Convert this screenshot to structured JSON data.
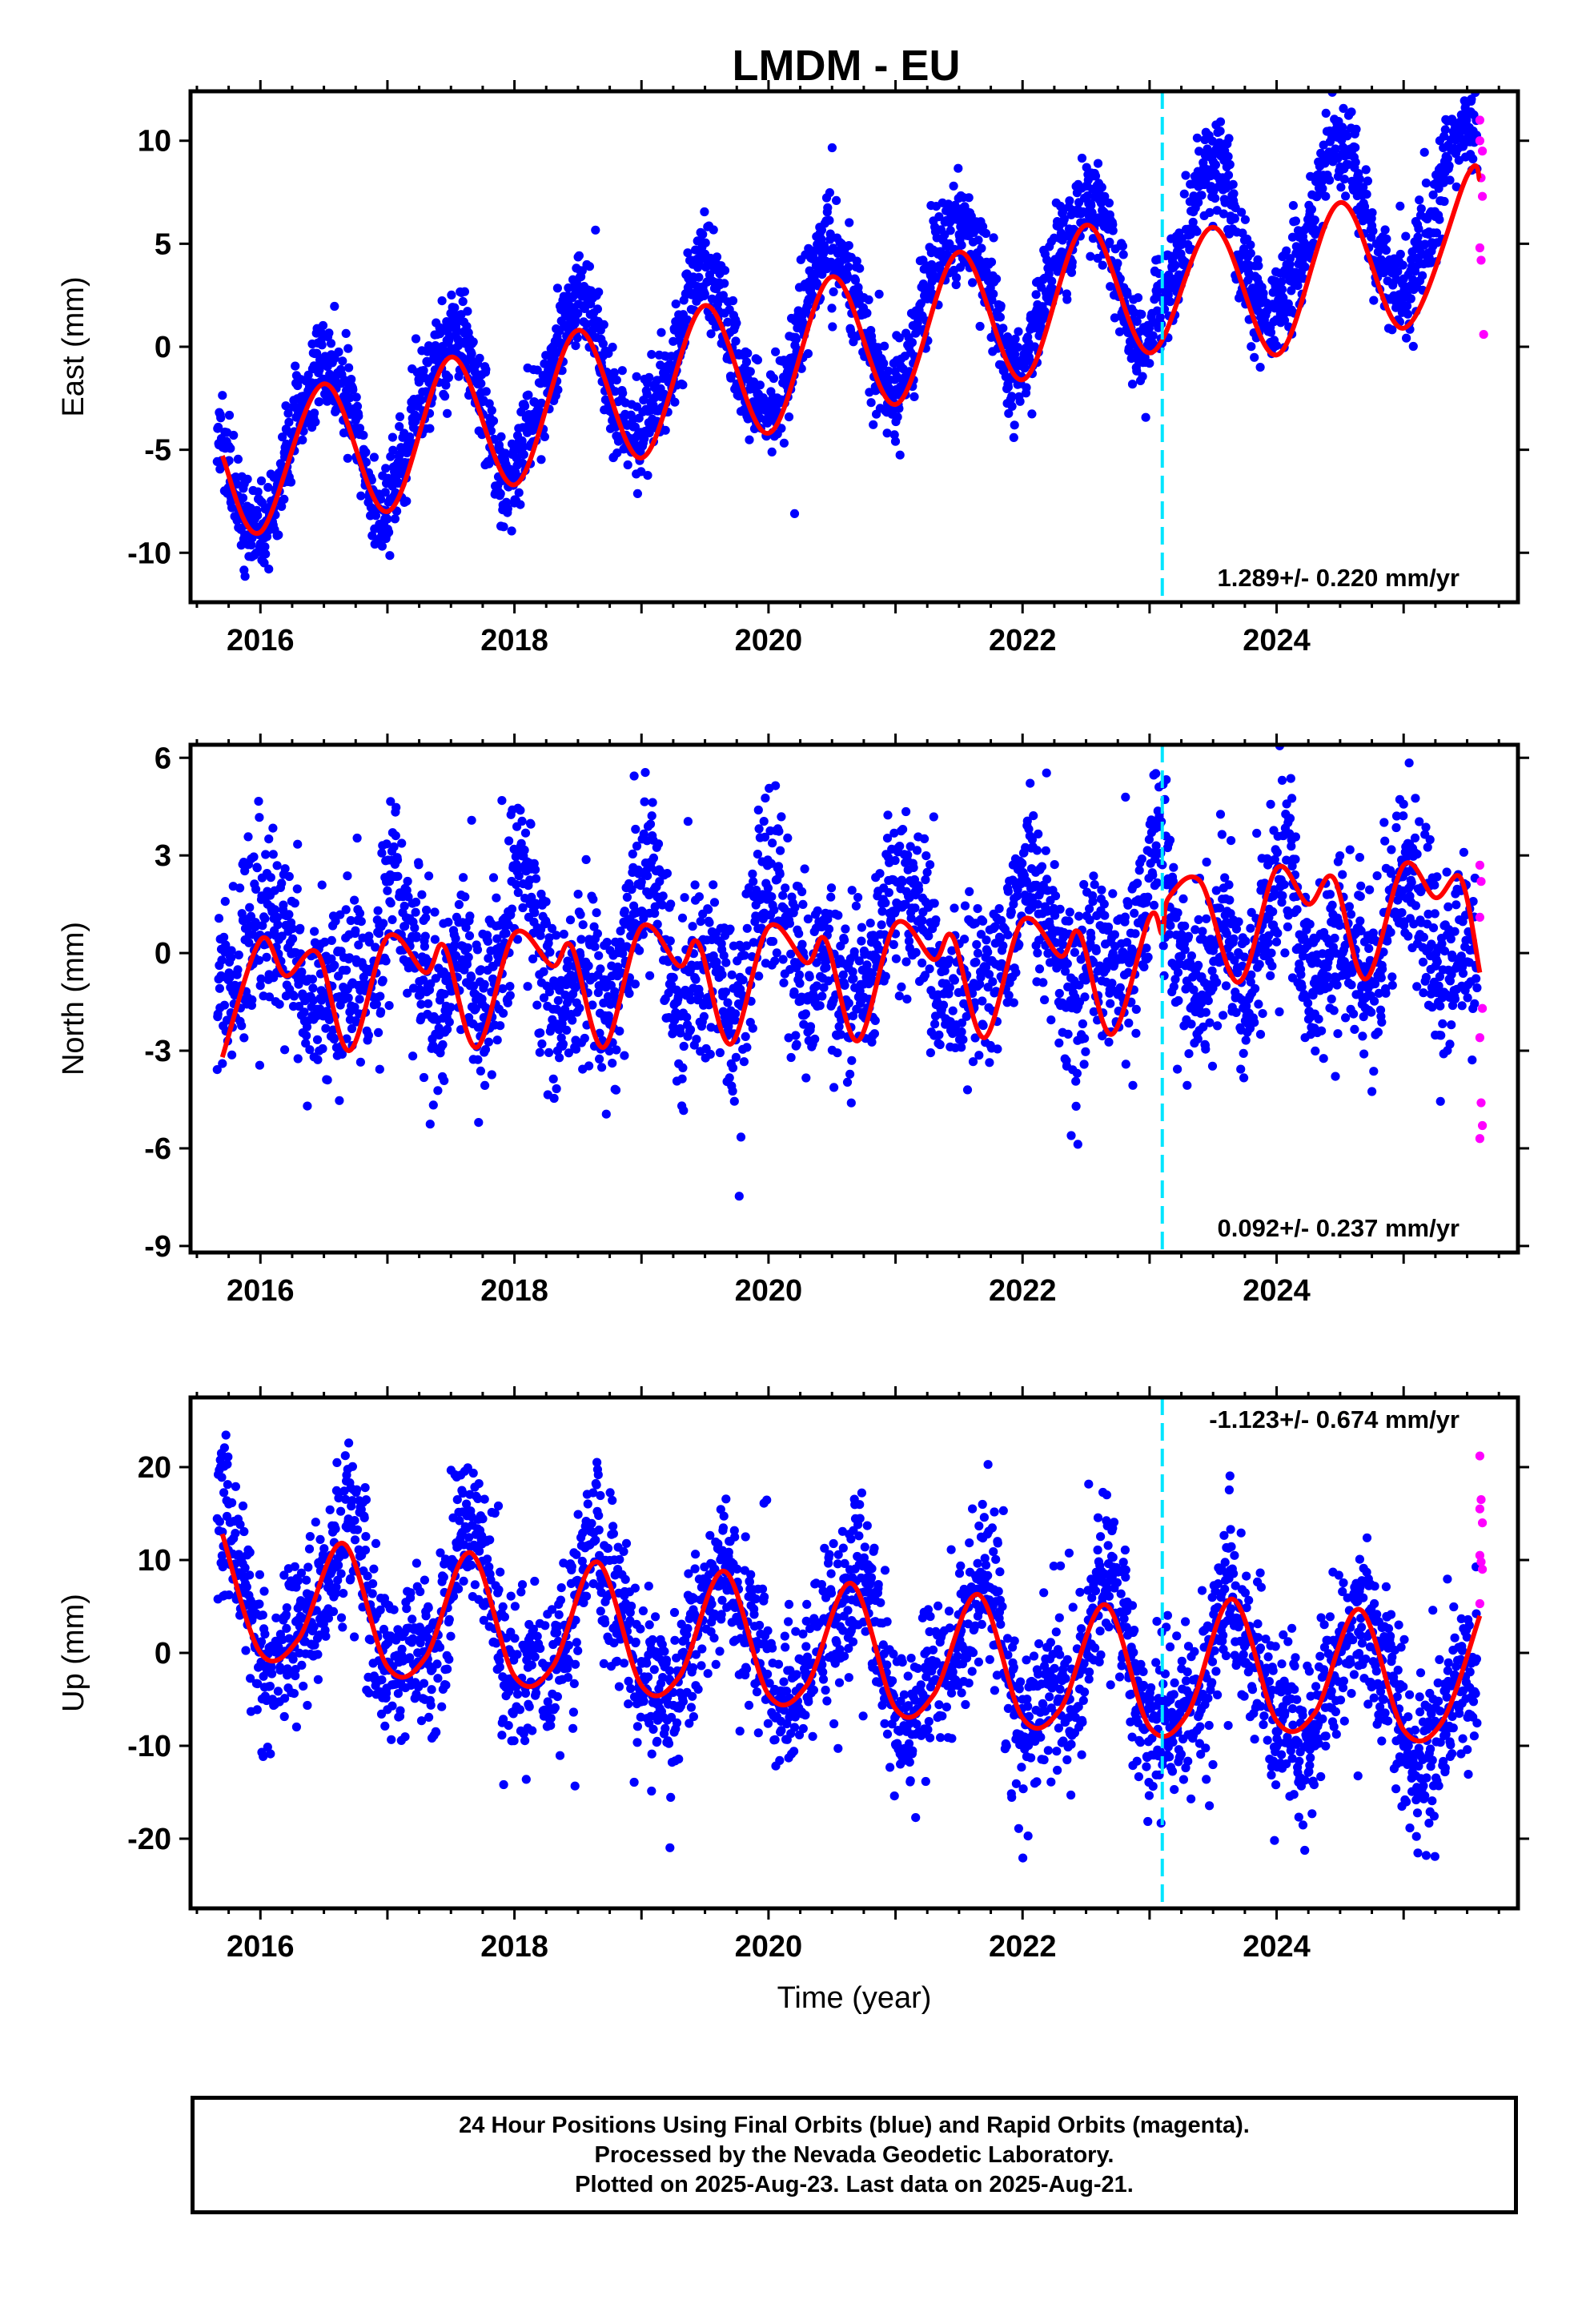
{
  "title": "LMDM - EU",
  "footer": {
    "line1": "24 Hour Positions Using Final Orbits (blue) and Rapid Orbits (magenta).",
    "line2": "Processed by the Nevada Geodetic Laboratory.",
    "line3": "Plotted on 2025-Aug-23. Last data on 2025-Aug-21."
  },
  "colors": {
    "final": "#0000ff",
    "rapid": "#ff00ff",
    "fit": "#ff0000",
    "step": "#00e5ff"
  },
  "chart_data": [
    {
      "type": "scatter",
      "name": "east",
      "ylabel": "East (mm)",
      "xlabel": "",
      "rate_text": "1.289+/- 0.220 mm/yr",
      "xlim": [
        2015.45,
        2025.9
      ],
      "ylim": [
        -12.4,
        12.4
      ],
      "xticks": [
        2016,
        2018,
        2020,
        2022,
        2024
      ],
      "xtick_labels": [
        "2016",
        "2018",
        "2020",
        "2022",
        "2024"
      ],
      "yticks": [
        -10,
        -5,
        0,
        5,
        10
      ],
      "ytick_labels": [
        "-10",
        "-5",
        "0",
        "5",
        "10"
      ],
      "step_year": 2023.1,
      "trend": {
        "x0": 2020.5,
        "y0": 1.0,
        "rate": 1.289,
        "t2": -0.02
      },
      "seasonal": {
        "ann_amp": 3.7,
        "ann_peak": 0.48,
        "semi_amp": 0.3,
        "semi_phase": 0.1
      },
      "noise": 1.15,
      "seed": 11,
      "fit_points": [
        [
          2015.7,
          -5.3
        ],
        [
          2016.0,
          -9.0
        ],
        [
          2016.5,
          -1.8
        ],
        [
          2017.0,
          -8.0
        ],
        [
          2017.5,
          -0.5
        ],
        [
          2018.0,
          -6.7
        ],
        [
          2018.5,
          0.8
        ],
        [
          2019.0,
          -5.4
        ],
        [
          2019.5,
          2.0
        ],
        [
          2020.0,
          -4.2
        ],
        [
          2020.5,
          3.4
        ],
        [
          2021.0,
          -2.8
        ],
        [
          2021.5,
          4.6
        ],
        [
          2022.0,
          -1.6
        ],
        [
          2022.5,
          5.9
        ],
        [
          2023.0,
          -0.3
        ],
        [
          2023.5,
          5.8
        ],
        [
          2024.0,
          -0.4
        ],
        [
          2024.5,
          7.0
        ],
        [
          2025.0,
          0.9
        ],
        [
          2025.5,
          8.3
        ],
        [
          2025.6,
          8.1
        ]
      ],
      "rapid": [
        [
          2025.6,
          11.0
        ],
        [
          2025.6,
          10.0
        ],
        [
          2025.61,
          8.2
        ],
        [
          2025.62,
          7.3
        ],
        [
          2025.6,
          4.8
        ],
        [
          2025.61,
          4.2
        ],
        [
          2025.63,
          0.6
        ],
        [
          2025.62,
          9.5
        ]
      ]
    },
    {
      "type": "scatter",
      "name": "north",
      "ylabel": "North (mm)",
      "xlabel": "",
      "rate_text": "0.092+/- 0.237 mm/yr",
      "xlim": [
        2015.45,
        2025.9
      ],
      "ylim": [
        -9.2,
        6.4
      ],
      "xticks": [
        2016,
        2018,
        2020,
        2022,
        2024
      ],
      "xtick_labels": [
        "2016",
        "2018",
        "2020",
        "2022",
        "2024"
      ],
      "yticks": [
        -9,
        -6,
        -3,
        0,
        3,
        6
      ],
      "ytick_labels": [
        "-9",
        "-6",
        "-3",
        "0",
        "3",
        "6"
      ],
      "step_year": 2023.1,
      "trend": {
        "x0": 2020.5,
        "y0": 0.0,
        "rate": 0.092,
        "t2": 0.0
      },
      "seasonal": {
        "ann_amp": 1.3,
        "ann_peak": 0.05,
        "semi_amp": 1.0,
        "semi_phase": 0.05
      },
      "noise": 1.3,
      "seed": 23,
      "fit_points": [
        [
          2015.7,
          -3.2
        ],
        [
          2016.0,
          0.4
        ],
        [
          2016.2,
          -0.7
        ],
        [
          2016.45,
          0.0
        ],
        [
          2016.7,
          -3.0
        ],
        [
          2017.0,
          0.5
        ],
        [
          2017.3,
          -0.6
        ],
        [
          2017.45,
          0.2
        ],
        [
          2017.7,
          -2.9
        ],
        [
          2018.0,
          0.6
        ],
        [
          2018.3,
          -0.4
        ],
        [
          2018.45,
          0.2
        ],
        [
          2018.7,
          -2.9
        ],
        [
          2019.0,
          0.8
        ],
        [
          2019.3,
          -0.4
        ],
        [
          2019.45,
          0.3
        ],
        [
          2019.7,
          -2.8
        ],
        [
          2020.0,
          0.8
        ],
        [
          2020.3,
          -0.3
        ],
        [
          2020.45,
          0.4
        ],
        [
          2020.7,
          -2.7
        ],
        [
          2021.0,
          0.9
        ],
        [
          2021.3,
          -0.2
        ],
        [
          2021.45,
          0.5
        ],
        [
          2021.7,
          -2.6
        ],
        [
          2022.0,
          1.0
        ],
        [
          2022.3,
          -0.1
        ],
        [
          2022.45,
          0.6
        ],
        [
          2022.7,
          -2.5
        ],
        [
          2023.0,
          1.1
        ],
        [
          2023.1,
          0.6
        ],
        [
          2023.15,
          1.7
        ],
        [
          2023.4,
          2.2
        ],
        [
          2023.7,
          -0.9
        ],
        [
          2024.0,
          2.6
        ],
        [
          2024.25,
          1.5
        ],
        [
          2024.45,
          2.3
        ],
        [
          2024.7,
          -0.8
        ],
        [
          2025.0,
          2.7
        ],
        [
          2025.25,
          1.7
        ],
        [
          2025.45,
          2.3
        ],
        [
          2025.6,
          -0.6
        ]
      ],
      "rapid": [
        [
          2025.6,
          2.7
        ],
        [
          2025.61,
          2.2
        ],
        [
          2025.6,
          1.1
        ],
        [
          2025.62,
          -1.7
        ],
        [
          2025.6,
          -2.6
        ],
        [
          2025.61,
          -4.6
        ],
        [
          2025.62,
          -5.3
        ],
        [
          2025.6,
          -5.7
        ]
      ]
    },
    {
      "type": "scatter",
      "name": "up",
      "ylabel": "Up (mm)",
      "xlabel": "Time (year)",
      "rate_text": "-1.123+/- 0.674 mm/yr",
      "xlim": [
        2015.45,
        2025.9
      ],
      "ylim": [
        -27.5,
        27.5
      ],
      "xticks": [
        2016,
        2018,
        2020,
        2022,
        2024
      ],
      "xtick_labels": [
        "2016",
        "2018",
        "2020",
        "2022",
        "2024"
      ],
      "yticks": [
        -20,
        -10,
        0,
        10,
        20
      ],
      "ytick_labels": [
        "-20",
        "-10",
        "0",
        "10",
        "20"
      ],
      "step_year": 2023.1,
      "trend": {
        "x0": 2020.5,
        "y0": 0.5,
        "rate": -1.123,
        "t2": 0.0
      },
      "seasonal": {
        "ann_amp": 7.0,
        "ann_peak": 0.65,
        "semi_amp": 1.5,
        "semi_phase": 0.2
      },
      "noise": 4.2,
      "seed": 37,
      "fit_points": [
        [
          2015.7,
          12.8
        ],
        [
          2016.0,
          0.0
        ],
        [
          2016.3,
          1.5
        ],
        [
          2016.65,
          11.8
        ],
        [
          2017.0,
          -1.5
        ],
        [
          2017.3,
          -0.5
        ],
        [
          2017.65,
          10.8
        ],
        [
          2018.0,
          -2.5
        ],
        [
          2018.3,
          -1.5
        ],
        [
          2018.65,
          9.8
        ],
        [
          2019.0,
          -3.5
        ],
        [
          2019.3,
          -2.5
        ],
        [
          2019.65,
          8.8
        ],
        [
          2020.0,
          -4.5
        ],
        [
          2020.3,
          -3.5
        ],
        [
          2020.65,
          7.5
        ],
        [
          2021.0,
          -6.0
        ],
        [
          2021.3,
          -4.5
        ],
        [
          2021.65,
          6.3
        ],
        [
          2022.0,
          -7.0
        ],
        [
          2022.3,
          -6.0
        ],
        [
          2022.65,
          5.2
        ],
        [
          2023.0,
          -8.0
        ],
        [
          2023.3,
          -6.5
        ],
        [
          2023.65,
          5.8
        ],
        [
          2024.0,
          -7.3
        ],
        [
          2024.3,
          -6.5
        ],
        [
          2024.65,
          4.7
        ],
        [
          2025.0,
          -8.3
        ],
        [
          2025.3,
          -7.5
        ],
        [
          2025.6,
          4.0
        ]
      ],
      "rapid": [
        [
          2025.6,
          21.2
        ],
        [
          2025.61,
          16.5
        ],
        [
          2025.6,
          15.5
        ],
        [
          2025.62,
          14.0
        ],
        [
          2025.6,
          10.5
        ],
        [
          2025.61,
          9.8
        ],
        [
          2025.62,
          9.0
        ],
        [
          2025.6,
          5.3
        ]
      ]
    }
  ]
}
